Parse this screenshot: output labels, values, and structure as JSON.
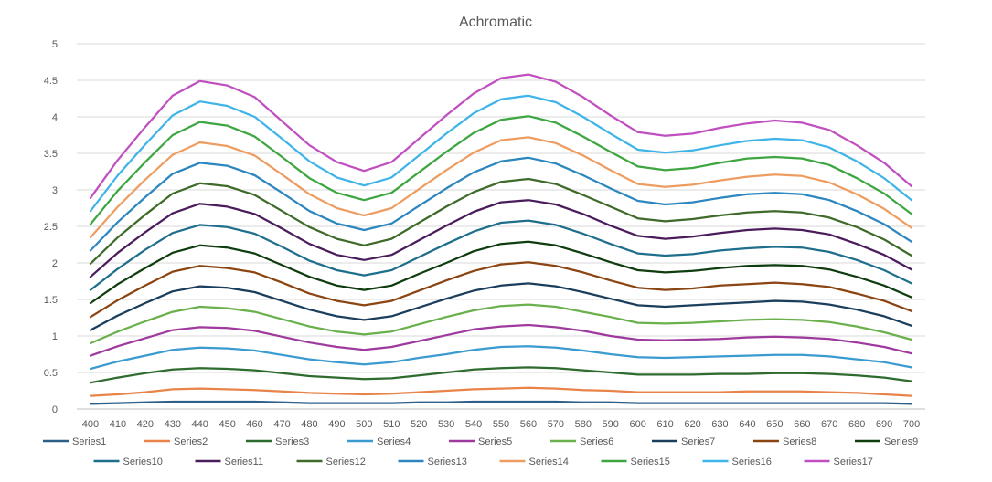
{
  "chart_data": {
    "type": "line",
    "title": "Achromatic",
    "xlabel": "",
    "ylabel": "",
    "x": [
      400,
      410,
      420,
      430,
      440,
      450,
      460,
      470,
      480,
      490,
      500,
      510,
      520,
      530,
      540,
      550,
      560,
      570,
      580,
      590,
      600,
      610,
      620,
      630,
      640,
      650,
      660,
      670,
      680,
      690,
      700
    ],
    "ylim": [
      0,
      5
    ],
    "yticks": [
      0,
      0.5,
      1,
      1.5,
      2,
      2.5,
      3,
      3.5,
      4,
      4.5,
      5
    ],
    "ytick_labels": [
      "0",
      "0.5",
      "1",
      "1.5",
      "2",
      "2.5",
      "3",
      "3.5",
      "4",
      "4.5",
      "5"
    ],
    "grid": true,
    "legend_position": "bottom",
    "series": [
      {
        "name": "Series1",
        "color": "#2E5F88",
        "values": [
          0.07,
          0.08,
          0.09,
          0.1,
          0.1,
          0.1,
          0.1,
          0.09,
          0.08,
          0.08,
          0.08,
          0.08,
          0.09,
          0.09,
          0.1,
          0.1,
          0.1,
          0.1,
          0.09,
          0.09,
          0.08,
          0.08,
          0.08,
          0.08,
          0.08,
          0.08,
          0.08,
          0.08,
          0.08,
          0.08,
          0.07
        ]
      },
      {
        "name": "Series2",
        "color": "#E8844A",
        "values": [
          0.18,
          0.2,
          0.23,
          0.27,
          0.28,
          0.27,
          0.26,
          0.24,
          0.22,
          0.21,
          0.2,
          0.21,
          0.23,
          0.25,
          0.27,
          0.28,
          0.29,
          0.28,
          0.26,
          0.25,
          0.23,
          0.23,
          0.23,
          0.23,
          0.24,
          0.24,
          0.24,
          0.23,
          0.22,
          0.2,
          0.18
        ]
      },
      {
        "name": "Series3",
        "color": "#2E6B2E",
        "values": [
          0.36,
          0.43,
          0.49,
          0.54,
          0.56,
          0.55,
          0.53,
          0.49,
          0.45,
          0.43,
          0.41,
          0.42,
          0.46,
          0.5,
          0.54,
          0.56,
          0.57,
          0.56,
          0.53,
          0.5,
          0.47,
          0.47,
          0.47,
          0.48,
          0.48,
          0.49,
          0.49,
          0.48,
          0.46,
          0.43,
          0.38
        ]
      },
      {
        "name": "Series4",
        "color": "#3A9BD0",
        "values": [
          0.55,
          0.65,
          0.73,
          0.81,
          0.84,
          0.83,
          0.8,
          0.74,
          0.68,
          0.64,
          0.61,
          0.64,
          0.7,
          0.75,
          0.81,
          0.85,
          0.86,
          0.84,
          0.8,
          0.75,
          0.71,
          0.7,
          0.71,
          0.72,
          0.73,
          0.74,
          0.74,
          0.72,
          0.68,
          0.64,
          0.57
        ]
      },
      {
        "name": "Series5",
        "color": "#9E3A9E",
        "values": [
          0.73,
          0.86,
          0.97,
          1.08,
          1.12,
          1.11,
          1.07,
          0.99,
          0.91,
          0.85,
          0.81,
          0.85,
          0.93,
          1.01,
          1.09,
          1.13,
          1.15,
          1.12,
          1.07,
          1.0,
          0.95,
          0.94,
          0.95,
          0.96,
          0.98,
          0.99,
          0.98,
          0.96,
          0.91,
          0.85,
          0.76
        ]
      },
      {
        "name": "Series6",
        "color": "#6AB04C",
        "values": [
          0.9,
          1.06,
          1.2,
          1.33,
          1.4,
          1.38,
          1.33,
          1.23,
          1.13,
          1.06,
          1.02,
          1.06,
          1.16,
          1.26,
          1.35,
          1.41,
          1.43,
          1.4,
          1.33,
          1.26,
          1.18,
          1.17,
          1.18,
          1.2,
          1.22,
          1.23,
          1.22,
          1.19,
          1.13,
          1.05,
          0.95
        ]
      },
      {
        "name": "Series7",
        "color": "#1A3E5C",
        "values": [
          1.08,
          1.28,
          1.45,
          1.61,
          1.68,
          1.66,
          1.6,
          1.48,
          1.36,
          1.27,
          1.22,
          1.27,
          1.39,
          1.51,
          1.62,
          1.69,
          1.72,
          1.68,
          1.6,
          1.51,
          1.42,
          1.4,
          1.42,
          1.44,
          1.46,
          1.48,
          1.47,
          1.43,
          1.36,
          1.27,
          1.14
        ]
      },
      {
        "name": "Series8",
        "color": "#8B4513",
        "values": [
          1.26,
          1.49,
          1.69,
          1.88,
          1.96,
          1.93,
          1.87,
          1.73,
          1.58,
          1.48,
          1.42,
          1.48,
          1.62,
          1.76,
          1.89,
          1.98,
          2.01,
          1.96,
          1.87,
          1.76,
          1.66,
          1.63,
          1.65,
          1.69,
          1.71,
          1.73,
          1.71,
          1.67,
          1.58,
          1.48,
          1.34
        ]
      },
      {
        "name": "Series9",
        "color": "#0F3D0F",
        "values": [
          1.45,
          1.71,
          1.93,
          2.14,
          2.24,
          2.21,
          2.13,
          1.97,
          1.81,
          1.69,
          1.63,
          1.69,
          1.85,
          2.0,
          2.16,
          2.26,
          2.29,
          2.24,
          2.13,
          2.01,
          1.9,
          1.87,
          1.89,
          1.93,
          1.96,
          1.97,
          1.96,
          1.91,
          1.81,
          1.69,
          1.53
        ]
      },
      {
        "name": "Series10",
        "color": "#1F6E8C",
        "values": [
          1.63,
          1.92,
          2.18,
          2.41,
          2.52,
          2.49,
          2.4,
          2.22,
          2.03,
          1.9,
          1.83,
          1.9,
          2.08,
          2.26,
          2.43,
          2.55,
          2.58,
          2.52,
          2.4,
          2.26,
          2.13,
          2.1,
          2.12,
          2.17,
          2.2,
          2.22,
          2.21,
          2.15,
          2.04,
          1.9,
          1.72
        ]
      },
      {
        "name": "Series11",
        "color": "#4B1C5C",
        "values": [
          1.81,
          2.14,
          2.42,
          2.68,
          2.81,
          2.77,
          2.67,
          2.47,
          2.26,
          2.11,
          2.04,
          2.11,
          2.31,
          2.51,
          2.7,
          2.83,
          2.86,
          2.8,
          2.67,
          2.51,
          2.37,
          2.33,
          2.36,
          2.41,
          2.45,
          2.47,
          2.45,
          2.39,
          2.26,
          2.11,
          1.91
        ]
      },
      {
        "name": "Series12",
        "color": "#3F6B2A",
        "values": [
          1.99,
          2.35,
          2.66,
          2.95,
          3.09,
          3.05,
          2.93,
          2.71,
          2.49,
          2.33,
          2.24,
          2.33,
          2.55,
          2.77,
          2.97,
          3.11,
          3.15,
          3.08,
          2.93,
          2.77,
          2.61,
          2.57,
          2.6,
          2.65,
          2.69,
          2.71,
          2.69,
          2.62,
          2.49,
          2.32,
          2.1
        ]
      },
      {
        "name": "Series13",
        "color": "#2C86BF",
        "values": [
          2.17,
          2.56,
          2.9,
          3.22,
          3.37,
          3.33,
          3.2,
          2.96,
          2.71,
          2.54,
          2.45,
          2.54,
          2.78,
          3.02,
          3.24,
          3.39,
          3.44,
          3.36,
          3.2,
          3.02,
          2.85,
          2.8,
          2.83,
          2.89,
          2.94,
          2.96,
          2.94,
          2.86,
          2.71,
          2.53,
          2.29
        ]
      },
      {
        "name": "Series14",
        "color": "#EE9D62",
        "values": [
          2.35,
          2.77,
          3.14,
          3.48,
          3.65,
          3.6,
          3.47,
          3.21,
          2.94,
          2.75,
          2.65,
          2.75,
          3.01,
          3.27,
          3.51,
          3.68,
          3.72,
          3.64,
          3.47,
          3.27,
          3.08,
          3.04,
          3.07,
          3.13,
          3.18,
          3.21,
          3.19,
          3.1,
          2.94,
          2.74,
          2.48
        ]
      },
      {
        "name": "Series15",
        "color": "#3DA640",
        "values": [
          2.53,
          2.99,
          3.38,
          3.75,
          3.93,
          3.88,
          3.73,
          3.45,
          3.16,
          2.96,
          2.86,
          2.96,
          3.24,
          3.52,
          3.78,
          3.96,
          4.01,
          3.92,
          3.73,
          3.52,
          3.32,
          3.27,
          3.3,
          3.37,
          3.43,
          3.45,
          3.43,
          3.34,
          3.16,
          2.95,
          2.67
        ]
      },
      {
        "name": "Series16",
        "color": "#3FB4E8",
        "values": [
          2.71,
          3.2,
          3.62,
          4.02,
          4.21,
          4.15,
          4.0,
          3.7,
          3.39,
          3.17,
          3.06,
          3.17,
          3.47,
          3.77,
          4.05,
          4.24,
          4.29,
          4.2,
          4.0,
          3.77,
          3.55,
          3.51,
          3.54,
          3.61,
          3.67,
          3.7,
          3.68,
          3.58,
          3.39,
          3.16,
          2.86
        ]
      },
      {
        "name": "Series17",
        "color": "#C04FC0",
        "values": [
          2.89,
          3.41,
          3.86,
          4.29,
          4.49,
          4.43,
          4.27,
          3.94,
          3.61,
          3.38,
          3.26,
          3.38,
          3.7,
          4.02,
          4.32,
          4.53,
          4.58,
          4.48,
          4.27,
          4.02,
          3.79,
          3.74,
          3.77,
          3.85,
          3.91,
          3.95,
          3.92,
          3.82,
          3.61,
          3.37,
          3.05
        ]
      }
    ]
  }
}
